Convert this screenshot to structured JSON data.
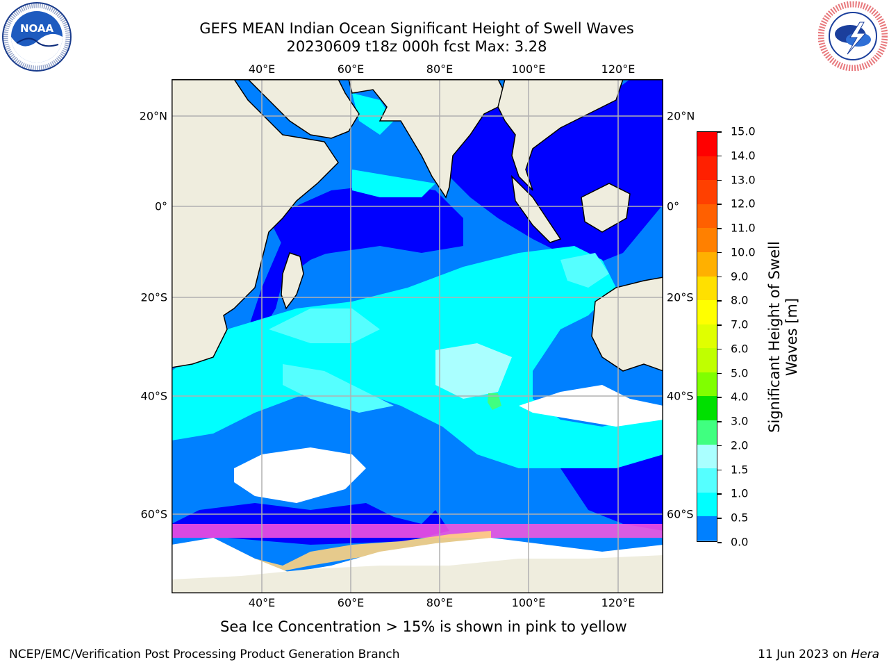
{
  "header": {
    "title": "GEFS MEAN Indian Ocean Significant Height of Swell Waves",
    "subtitle": "20230609 t18z 000h fcst   Max: 3.28"
  },
  "logos": {
    "left": {
      "icon": "noaa-logo-icon",
      "ring_text": "NATIONAL OCEANIC AND ATMOSPHERIC ADMINISTRATION",
      "ring_text_bottom": "U.S. DEPARTMENT OF COMMERCE",
      "center_text": "NOAA"
    },
    "right": {
      "icon": "national-weather-service-logo-icon",
      "ring_text": "NATIONAL WEATHER SERVICE"
    }
  },
  "map": {
    "lon_ticks_top": [
      "40°E",
      "60°E",
      "80°E",
      "100°E",
      "120°E"
    ],
    "lon_ticks_bottom": [
      "40°E",
      "60°E",
      "80°E",
      "100°E",
      "120°E"
    ],
    "lat_ticks_left": [
      "20°N",
      "0°",
      "20°S",
      "40°S",
      "60°S"
    ],
    "lat_ticks_right": [
      "20°N",
      "0°",
      "20°S",
      "40°S",
      "60°S"
    ],
    "colors": {
      "land": "#efedde",
      "ocean_low": "#0000ff",
      "ocean_med": "#0080ff",
      "ocean_high": "#00ffff",
      "ice": "#ff55dd",
      "grid": "#b0b0b0"
    }
  },
  "colorbar": {
    "label": "Significant Height of Swell Waves [m]",
    "ticks": [
      "15.0",
      "14.0",
      "13.0",
      "12.0",
      "11.0",
      "10.0",
      "9.0",
      "8.0",
      "7.0",
      "6.0",
      "5.0",
      "4.0",
      "3.0",
      "2.0",
      "1.5",
      "1.0",
      "0.5",
      "0.0"
    ],
    "colors": [
      "#ff0000",
      "#ff2000",
      "#ff4000",
      "#ff6000",
      "#ff8000",
      "#ffb000",
      "#ffe000",
      "#ffff00",
      "#e0ff00",
      "#c0ff00",
      "#80ff00",
      "#00e000",
      "#40ff80",
      "#aaffff",
      "#55ffff",
      "#00ffff",
      "#0080ff",
      "#0000ff"
    ]
  },
  "caption": "Sea Ice Concentration > 15% is shown in pink to yellow",
  "footer": {
    "left": "NCEP/EMC/Verification Post Processing Product Generation Branch",
    "right_prefix": "11 Jun 2023 on ",
    "right_system": "Hera"
  }
}
